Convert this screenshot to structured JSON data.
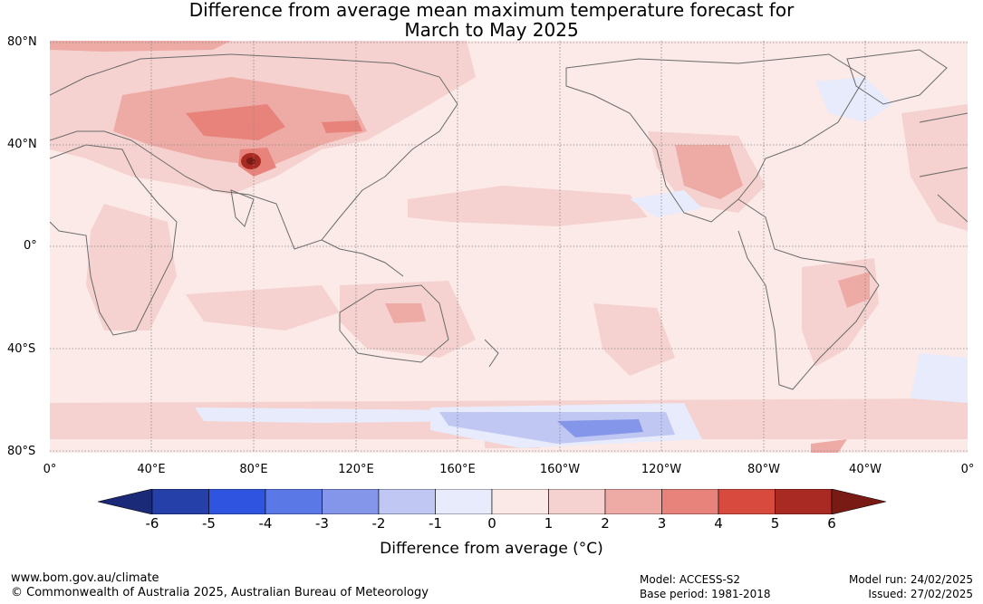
{
  "title_line1": "Difference from average mean maximum temperature forecast for",
  "title_line2": "March to May 2025",
  "lat_labels": [
    "80°N",
    "40°N",
    "0°",
    "40°S",
    "80°S"
  ],
  "lon_labels": [
    "0°",
    "40°E",
    "80°E",
    "120°E",
    "160°E",
    "160°W",
    "120°W",
    "80°W",
    "40°W",
    "0°"
  ],
  "colorbar": {
    "label": "Difference from average (°C)",
    "ticks": [
      "-6",
      "-5",
      "-4",
      "-3",
      "-2",
      "-1",
      "0",
      "1",
      "2",
      "3",
      "4",
      "5",
      "6"
    ],
    "colors": [
      "#2540a8",
      "#2f55e0",
      "#5a78e6",
      "#8496ea",
      "#bfc7f2",
      "#e8ebfb",
      "#fbe9e8",
      "#f5d2cf",
      "#eeaaa5",
      "#e8837c",
      "#d94a3e",
      "#a82a22"
    ],
    "under_color": "#1a2a78",
    "over_color": "#7a1a14"
  },
  "colors": {
    "ocean_base": "#fbeae8",
    "coast": "#6b6b6b",
    "grid": "#888888"
  },
  "footer": {
    "url": "www.bom.gov.au/climate",
    "copyright": "© Commonwealth of Australia 2025, Australian Bureau of Meteorology",
    "model": "Model: ACCESS-S2",
    "base_period": "Base period: 1981-2018",
    "model_run": "Model run: 24/02/2025",
    "issued": "Issued: 27/02/2025"
  }
}
